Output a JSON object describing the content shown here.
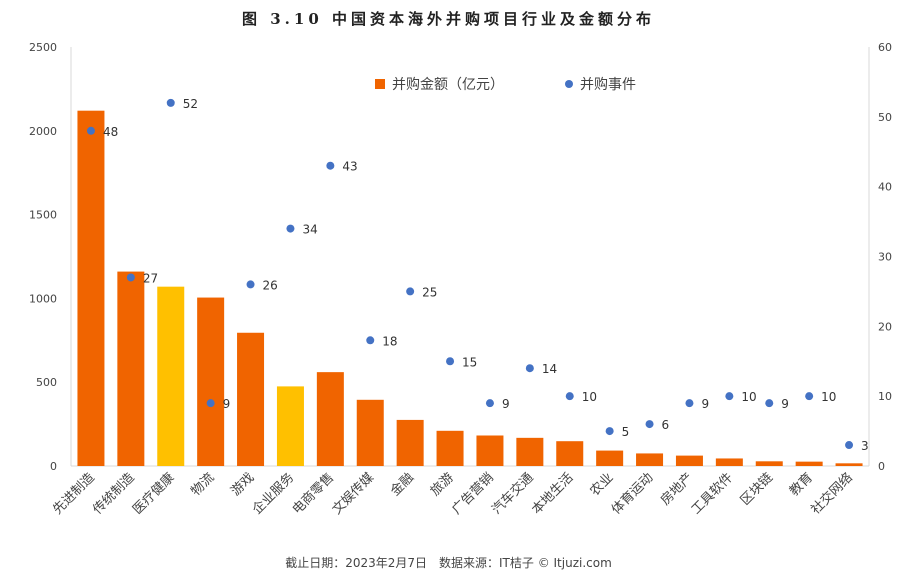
{
  "chart_data": {
    "type": "bar",
    "title": "图 3.10 中国资本海外并购项目行业及金额分布",
    "categories": [
      "先进制造",
      "传统制造",
      "医疗健康",
      "物流",
      "游戏",
      "企业服务",
      "电商零售",
      "文娱传媒",
      "金融",
      "旅游",
      "广告营销",
      "汽车交通",
      "本地生活",
      "农业",
      "体育运动",
      "房地产",
      "工具软件",
      "区块链",
      "教育",
      "社交网络"
    ],
    "series": [
      {
        "name": "并购金额（亿元）",
        "type": "bar",
        "axis": "left",
        "values": [
          2120,
          1160,
          1070,
          1005,
          795,
          475,
          560,
          395,
          275,
          210,
          182,
          168,
          148,
          92,
          75,
          62,
          45,
          28,
          26,
          16
        ]
      },
      {
        "name": "并购事件",
        "type": "scatter",
        "axis": "right",
        "values": [
          48,
          27,
          52,
          9,
          26,
          34,
          43,
          18,
          25,
          15,
          9,
          14,
          10,
          5,
          6,
          9,
          10,
          9,
          10,
          3
        ]
      }
    ],
    "highlighted_categories": [
      "医疗健康",
      "企业服务"
    ],
    "y_left": {
      "min": 0,
      "max": 2500,
      "ticks": [
        "0",
        "500",
        "1000",
        "1500",
        "2000",
        "2500"
      ]
    },
    "y_right": {
      "min": 0,
      "max": 60,
      "ticks": [
        "0",
        "10",
        "20",
        "30",
        "40",
        "50",
        "60"
      ]
    },
    "legend": [
      "并购金额（亿元）",
      "并购事件"
    ],
    "legend_position": "top-center",
    "grid": false,
    "colors": {
      "bar": "#f06400",
      "bar_highlight": "#ffc000",
      "dot": "#4472c4",
      "axis": "#d9d9d9"
    }
  },
  "footer": "截止日期：2023年2月7日　数据来源：IT桔子 © Itjuzi.com"
}
